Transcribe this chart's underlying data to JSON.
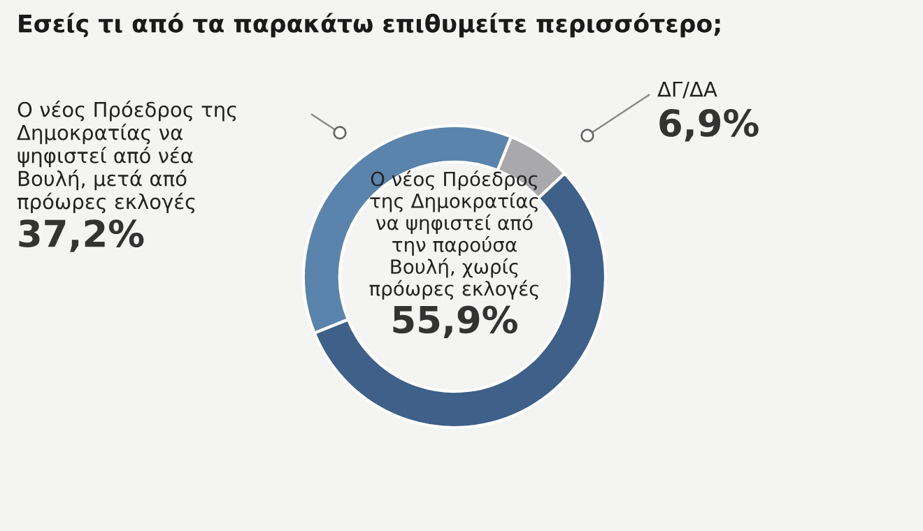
{
  "chart_data": {
    "type": "donut",
    "title": "Εσείς τι από τα παρακάτω επιθυμείτε περισσότερο;",
    "categories": [
      "ΔΓ/ΔΑ",
      "Ο νέος Πρόεδρος της Δημοκρατίας να ψηφιστεί από την παρούσα Βουλή, χωρίς πρόωρες εκλογές",
      "Ο νέος Πρόεδρος της Δημοκρατίας να ψηφιστεί από νέα Βουλή, μετά από πρόωρες εκλογές"
    ],
    "values": [
      6.9,
      55.9,
      37.2
    ],
    "colors": [
      "#a9a9ab",
      "#3e6089",
      "#5a84ab"
    ],
    "value_labels": [
      "6,9%",
      "55,9%",
      "37,2%"
    ]
  }
}
